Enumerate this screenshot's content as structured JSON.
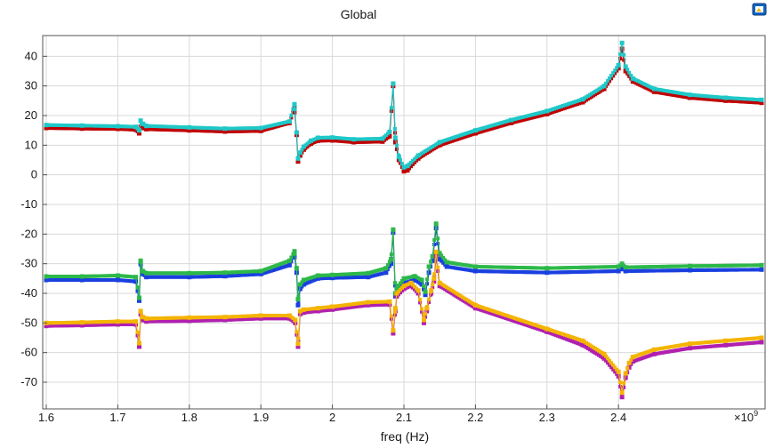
{
  "chart_data": {
    "type": "line",
    "title": "Global",
    "xlabel": "freq (Hz)",
    "ylabel": "",
    "x_multiplier": "×10",
    "x_multiplier_exp": "9",
    "xlim": [
      1.595,
      2.605
    ],
    "ylim": [
      -79,
      47
    ],
    "xticks": [
      1.6,
      1.7,
      1.8,
      1.9,
      2.0,
      2.1,
      2.2,
      2.3,
      2.4
    ],
    "xtick_labels": [
      "1.6",
      "1.7",
      "1.8",
      "1.9",
      "2",
      "2.1",
      "2.2",
      "2.3",
      "2.4"
    ],
    "yticks": [
      40,
      30,
      20,
      10,
      0,
      -10,
      -20,
      -30,
      -40,
      -50,
      -60,
      -70
    ],
    "ytick_labels": [
      "40",
      "30",
      "20",
      "10",
      "0",
      "-10",
      "-20",
      "-30",
      "-40",
      "-50",
      "-60",
      "-70"
    ],
    "grid": true,
    "series": [
      {
        "color": "#c00000",
        "x": [
          1.6,
          1.65,
          1.7,
          1.725,
          1.73,
          1.732,
          1.735,
          1.74,
          1.8,
          1.85,
          1.9,
          1.94,
          1.947,
          1.95,
          1.952,
          1.955,
          1.96,
          1.97,
          1.98,
          2.0,
          2.03,
          2.07,
          2.08,
          2.085,
          2.088,
          2.093,
          2.1,
          2.105,
          2.12,
          2.15,
          2.2,
          2.25,
          2.3,
          2.35,
          2.38,
          2.4,
          2.405,
          2.41,
          2.42,
          2.45,
          2.5,
          2.55,
          2.6
        ],
        "y": [
          15.8,
          15.6,
          15.5,
          15.2,
          14.0,
          16.2,
          15.8,
          15.4,
          15.0,
          14.6,
          14.8,
          17.5,
          22.5,
          13.5,
          4.5,
          6.5,
          8.5,
          10.5,
          11.5,
          11.6,
          11.0,
          11.2,
          13.0,
          30.0,
          11.0,
          5.0,
          1.2,
          1.5,
          5.5,
          10.0,
          14.0,
          17.5,
          20.5,
          24.5,
          29.0,
          36.0,
          42.5,
          35.0,
          31.5,
          28.0,
          26.0,
          25.0,
          24.3
        ]
      },
      {
        "color": "#1fc8c8",
        "x": [
          1.6,
          1.65,
          1.7,
          1.725,
          1.73,
          1.732,
          1.735,
          1.74,
          1.8,
          1.85,
          1.9,
          1.94,
          1.947,
          1.95,
          1.952,
          1.955,
          1.96,
          1.97,
          1.98,
          2.0,
          2.03,
          2.07,
          2.08,
          2.085,
          2.088,
          2.093,
          2.1,
          2.105,
          2.12,
          2.15,
          2.2,
          2.25,
          2.3,
          2.35,
          2.38,
          2.4,
          2.405,
          2.41,
          2.42,
          2.45,
          2.5,
          2.55,
          2.6
        ],
        "y": [
          16.8,
          16.6,
          16.4,
          16.2,
          15.0,
          18.3,
          17.2,
          16.5,
          16.0,
          15.6,
          15.8,
          18.0,
          23.8,
          14.3,
          5.5,
          7.5,
          9.5,
          11.5,
          12.5,
          12.6,
          12.0,
          12.2,
          14.5,
          30.8,
          12.5,
          6.0,
          2.5,
          3.0,
          6.5,
          11.0,
          15.0,
          18.5,
          21.5,
          25.5,
          30.0,
          37.0,
          44.5,
          36.5,
          32.5,
          29.0,
          27.0,
          26.0,
          25.3
        ]
      },
      {
        "color": "#1a3fe0",
        "x": [
          1.6,
          1.65,
          1.7,
          1.725,
          1.73,
          1.732,
          1.735,
          1.74,
          1.8,
          1.85,
          1.9,
          1.94,
          1.947,
          1.95,
          1.952,
          1.955,
          1.96,
          1.98,
          2.0,
          2.05,
          2.075,
          2.082,
          2.085,
          2.088,
          2.092,
          2.1,
          2.115,
          2.125,
          2.13,
          2.135,
          2.14,
          2.145,
          2.15,
          2.16,
          2.2,
          2.3,
          2.4,
          2.405,
          2.41,
          2.5,
          2.6
        ],
        "y": [
          -35.5,
          -35.5,
          -35.5,
          -36.0,
          -42.5,
          -30.0,
          -33.5,
          -34.5,
          -34.5,
          -34.2,
          -33.5,
          -30.5,
          -27.0,
          -33.0,
          -44.0,
          -38.5,
          -37.0,
          -35.0,
          -34.8,
          -34.5,
          -33.0,
          -30.0,
          -19.5,
          -41.0,
          -38.5,
          -36.5,
          -35.5,
          -37.0,
          -40.5,
          -33.0,
          -29.0,
          -18.0,
          -28.5,
          -31.0,
          -32.5,
          -33.0,
          -32.5,
          -31.5,
          -32.5,
          -32.2,
          -32.0
        ]
      },
      {
        "color": "#2db84a",
        "x": [
          1.6,
          1.65,
          1.7,
          1.725,
          1.73,
          1.732,
          1.735,
          1.74,
          1.8,
          1.85,
          1.9,
          1.94,
          1.947,
          1.95,
          1.952,
          1.955,
          1.96,
          1.98,
          2.0,
          2.05,
          2.075,
          2.082,
          2.085,
          2.088,
          2.092,
          2.1,
          2.115,
          2.125,
          2.13,
          2.135,
          2.14,
          2.145,
          2.15,
          2.16,
          2.2,
          2.3,
          2.4,
          2.405,
          2.41,
          2.5,
          2.6
        ],
        "y": [
          -34.3,
          -34.3,
          -34.0,
          -34.5,
          -41.5,
          -29.0,
          -32.5,
          -33.2,
          -33.2,
          -33.0,
          -32.5,
          -29.0,
          -25.8,
          -31.5,
          -42.0,
          -37.0,
          -35.5,
          -34.0,
          -33.8,
          -33.2,
          -31.5,
          -28.5,
          -18.5,
          -40.0,
          -37.5,
          -35.0,
          -34.2,
          -35.5,
          -39.5,
          -31.0,
          -27.5,
          -16.5,
          -26.5,
          -29.5,
          -31.0,
          -31.5,
          -31.0,
          -30.0,
          -31.2,
          -30.8,
          -30.5
        ]
      },
      {
        "color": "#b020b0",
        "x": [
          1.6,
          1.65,
          1.7,
          1.725,
          1.73,
          1.732,
          1.735,
          1.74,
          1.8,
          1.85,
          1.9,
          1.94,
          1.948,
          1.952,
          1.955,
          1.96,
          1.98,
          2.0,
          2.05,
          2.08,
          2.085,
          2.088,
          2.09,
          2.1,
          2.11,
          2.12,
          2.128,
          2.132,
          2.138,
          2.142,
          2.145,
          2.15,
          2.2,
          2.3,
          2.35,
          2.38,
          2.4,
          2.405,
          2.41,
          2.415,
          2.42,
          2.45,
          2.5,
          2.55,
          2.6
        ],
        "y": [
          -51.0,
          -50.8,
          -50.5,
          -50.5,
          -58.0,
          -47.0,
          -49.0,
          -49.5,
          -49.3,
          -49.0,
          -48.5,
          -48.5,
          -50.0,
          -58.0,
          -47.0,
          -46.5,
          -46.0,
          -45.5,
          -44.0,
          -43.8,
          -53.5,
          -46.0,
          -41.0,
          -38.5,
          -37.5,
          -40.0,
          -50.0,
          -46.0,
          -40.0,
          -36.0,
          -27.5,
          -37.5,
          -45.0,
          -53.0,
          -57.5,
          -62.0,
          -68.0,
          -75.0,
          -68.5,
          -65.0,
          -63.0,
          -60.5,
          -58.5,
          -57.5,
          -56.5
        ]
      },
      {
        "color": "#f4b400",
        "x": [
          1.6,
          1.65,
          1.7,
          1.725,
          1.73,
          1.732,
          1.735,
          1.74,
          1.8,
          1.85,
          1.9,
          1.94,
          1.948,
          1.952,
          1.955,
          1.96,
          1.98,
          2.0,
          2.05,
          2.08,
          2.085,
          2.088,
          2.09,
          2.1,
          2.11,
          2.12,
          2.128,
          2.132,
          2.138,
          2.142,
          2.145,
          2.15,
          2.2,
          2.3,
          2.35,
          2.38,
          2.4,
          2.405,
          2.41,
          2.415,
          2.42,
          2.45,
          2.5,
          2.55,
          2.6
        ],
        "y": [
          -50.0,
          -49.8,
          -49.5,
          -49.5,
          -56.8,
          -46.0,
          -48.0,
          -48.5,
          -48.2,
          -48.0,
          -47.5,
          -47.5,
          -49.0,
          -57.0,
          -46.0,
          -45.5,
          -45.0,
          -44.5,
          -43.0,
          -42.8,
          -52.5,
          -45.0,
          -40.0,
          -37.5,
          -36.5,
          -39.0,
          -49.0,
          -45.0,
          -39.0,
          -35.0,
          -26.0,
          -36.5,
          -44.0,
          -52.0,
          -56.0,
          -60.5,
          -66.5,
          -73.5,
          -67.0,
          -63.5,
          -61.5,
          -59.0,
          -57.0,
          -56.0,
          -55.0
        ]
      }
    ]
  },
  "toolbar": {
    "export_icon": "image-export-icon"
  }
}
